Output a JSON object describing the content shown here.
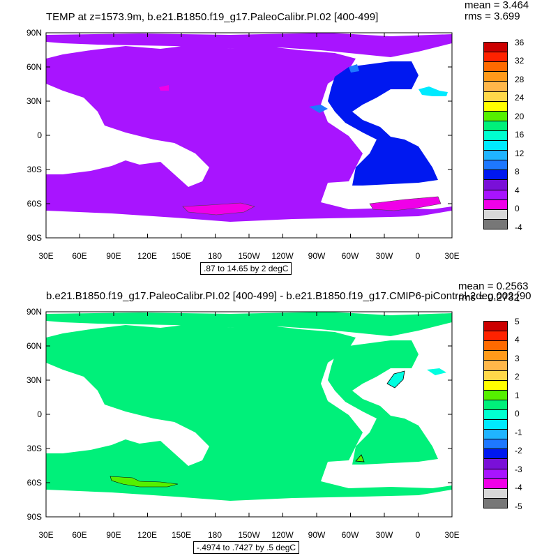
{
  "chart_data": [
    {
      "type": "heatmap",
      "title": "TEMP at z=1573.9m, b.e21.B1850.f19_g17.PaleoCalibr.PI.02 [400-499]",
      "stats": {
        "mean": "mean = 3.464",
        "rms": "rms = 3.699"
      },
      "range_label": ".87 to 14.65 by 2 degC",
      "x_ticks": [
        "30E",
        "60E",
        "90E",
        "120E",
        "150E",
        "180",
        "150W",
        "120W",
        "90W",
        "60W",
        "30W",
        "0",
        "30E"
      ],
      "y_ticks": [
        "90N",
        "60N",
        "30N",
        "0",
        "30S",
        "60S",
        "90S"
      ],
      "colorbar_labels": [
        "36",
        "32",
        "28",
        "24",
        "20",
        "16",
        "12",
        "8",
        "4",
        "0",
        "-4"
      ],
      "colorbar_colors": [
        "#cc0000",
        "#ff2200",
        "#ff6a00",
        "#ff9a1a",
        "#ffb74a",
        "#ffd84a",
        "#ffff00",
        "#55f000",
        "#00f07a",
        "#00ffd0",
        "#00eaff",
        "#20b4ff",
        "#1e78ff",
        "#0018f0",
        "#7a10d8",
        "#a814ff",
        "#f000e8",
        "#d8d8d8",
        "#777777"
      ],
      "dominant_colors": {
        "pacific_indian_southern": "#a814ff",
        "atlantic": "#0018f0",
        "antarctic_patches": "#f000e8"
      }
    },
    {
      "type": "heatmap",
      "title": "b.e21.B1850.f19_g17.PaleoCalibr.PI.02 [400-499] - b.e21.B1850.f19_g17.CMIP6-piControl-2deg.002 [90",
      "stats": {
        "mean": "mean = 0.2563",
        "rms": "rms = 0.2732"
      },
      "range_label": "-.4974 to .7427 by .5 degC",
      "x_ticks": [
        "30E",
        "60E",
        "90E",
        "120E",
        "150E",
        "180",
        "150W",
        "120W",
        "90W",
        "60W",
        "30W",
        "0",
        "30E"
      ],
      "y_ticks": [
        "90N",
        "60N",
        "30N",
        "0",
        "30S",
        "60S",
        "90S"
      ],
      "colorbar_labels": [
        "5",
        "4",
        "3",
        "2",
        "1",
        "0",
        "-1",
        "-2",
        "-3",
        "-4",
        "-5"
      ],
      "colorbar_colors": [
        "#cc0000",
        "#ff2200",
        "#ff6a00",
        "#ff9a1a",
        "#ffb74a",
        "#ffd84a",
        "#ffff00",
        "#55f000",
        "#00f07a",
        "#00ffd0",
        "#00eaff",
        "#20b4ff",
        "#1e78ff",
        "#0018f0",
        "#7a10d8",
        "#a814ff",
        "#f000e8",
        "#d8d8d8",
        "#777777"
      ],
      "dominant_colors": {
        "ocean": "#00f07a",
        "north_atlantic_patch": "#00ffe0",
        "southern_patch": "#55f000"
      }
    }
  ]
}
